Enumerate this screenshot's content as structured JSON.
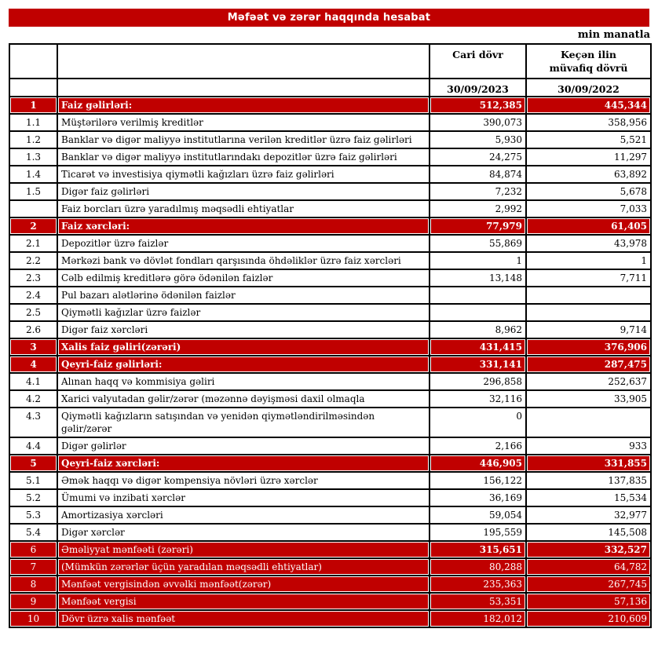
{
  "title": "Məfəət və zərər haqqında hesabat",
  "unit_note": "min manatla",
  "colors": {
    "accent_red": "#C00000",
    "border_black": "#000000"
  },
  "table": {
    "header": {
      "current_period_label": "Cari dövr",
      "previous_period_label_line1": "Keçən ilin",
      "previous_period_label_line2": "müvafiq dövrü",
      "current_period_date": "30/09/2023",
      "previous_period_date": "30/09/2022"
    },
    "rows": [
      {
        "no": "1",
        "label": "Faiz gəlirləri:",
        "current": "512,385",
        "previous": "445,344",
        "style": "section"
      },
      {
        "no": "1.1",
        "label": "Müştərilərə verilmiş kreditlər",
        "current": "390,073",
        "previous": "358,956",
        "style": "normal"
      },
      {
        "no": "1.2",
        "label": "Banklar və digər maliyyə institutlarına verilən kreditlər üzrə faiz gəlirləri",
        "current": "5,930",
        "previous": "5,521",
        "style": "normal"
      },
      {
        "no": "1.3",
        "label": "Banklar və digər maliyyə institutlarındakı depozitlər üzrə faiz gəlirləri",
        "current": "24,275",
        "previous": "11,297",
        "style": "normal"
      },
      {
        "no": "1.4",
        "label": "Ticarət və investisiya qiymətli kağızları üzrə faiz gəlirləri",
        "current": "84,874",
        "previous": "63,892",
        "style": "normal"
      },
      {
        "no": "1.5",
        "label": "Digər faiz gəlirləri",
        "current": "7,232",
        "previous": "5,678",
        "style": "normal"
      },
      {
        "no": "",
        "label": "Faiz borcları üzrə yaradılmış məqsədli ehtiyatlar",
        "current": "2,992",
        "previous": "7,033",
        "style": "normal"
      },
      {
        "no": "2",
        "label": "Faiz xərcləri:",
        "current": "77,979",
        "previous": "61,405",
        "style": "section"
      },
      {
        "no": "2.1",
        "label": "Depozitlər üzrə faizlər",
        "current": "55,869",
        "previous": "43,978",
        "style": "normal"
      },
      {
        "no": "2.2",
        "label": "Mərkəzi bank və dövlət fondları qarşısında öhdəliklər üzrə faiz xərcləri",
        "current": "1",
        "previous": "1",
        "style": "normal"
      },
      {
        "no": "2.3",
        "label": "Cəlb edilmiş kreditlərə görə ödənilən faizlər",
        "current": "13,148",
        "previous": "7,711",
        "style": "normal"
      },
      {
        "no": "2.4",
        "label": "Pul bazarı alətlərinə ödənilən faizlər",
        "current": "",
        "previous": "",
        "style": "normal"
      },
      {
        "no": "2.5",
        "label": "Qiymətli kağızlar üzrə faizlər",
        "current": "",
        "previous": "",
        "style": "normal"
      },
      {
        "no": "2.6",
        "label": "Digər faiz xərcləri",
        "current": "8,962",
        "previous": "9,714",
        "style": "normal"
      },
      {
        "no": "3",
        "label": "Xalis faiz gəliri(zərəri)",
        "current": "431,415",
        "previous": "376,906",
        "style": "section"
      },
      {
        "no": "4",
        "label": "Qeyri-faiz gəlirləri:",
        "current": "331,141",
        "previous": "287,475",
        "style": "section"
      },
      {
        "no": "4.1",
        "label": "Alınan haqq və kommisiya gəliri",
        "current": "296,858",
        "previous": "252,637",
        "style": "normal"
      },
      {
        "no": "4.2",
        "label": "Xarici valyutadan gəlir/zərər (məzənnə dəyişməsi daxil olmaqla",
        "current": "32,116",
        "previous": "33,905",
        "style": "normal"
      },
      {
        "no": "4.3",
        "label": "Qiymətli kağızların satışından və yenidən qiymətləndirilməsindən gəlir/zərər",
        "current": "0",
        "previous": "",
        "style": "normal"
      },
      {
        "no": "4.4",
        "label": "Digər gəlirlər",
        "current": "2,166",
        "previous": "933",
        "style": "normal"
      },
      {
        "no": "5",
        "label": "Qeyri-faiz xərcləri:",
        "current": "446,905",
        "previous": "331,855",
        "style": "section"
      },
      {
        "no": "5.1",
        "label": "Əmək haqqı və digər kompensiya növləri üzrə xərclər",
        "current": "156,122",
        "previous": "137,835",
        "style": "normal"
      },
      {
        "no": "5.2",
        "label": "Ümumi və inzibati xərclər",
        "current": "36,169",
        "previous": "15,534",
        "style": "normal"
      },
      {
        "no": "5.3",
        "label": "Amortizasiya xərcləri",
        "current": "59,054",
        "previous": "32,977",
        "style": "normal"
      },
      {
        "no": "5.4",
        "label": "Digər xərclər",
        "current": "195,559",
        "previous": "145,508",
        "style": "normal"
      },
      {
        "no": "6",
        "label": "Əməliyyat mənfəəti (zərəri)",
        "current": "315,651",
        "previous": "332,527",
        "style": "total-boldvals"
      },
      {
        "no": "7",
        "label": "(Mümkün zərərlər üçün yaradılan məqsədli ehtiyatlar)",
        "current": "80,288",
        "previous": "64,782",
        "style": "total"
      },
      {
        "no": "8",
        "label": "Mənfəət vergisindən əvvəlki mənfəət(zərər)",
        "current": "235,363",
        "previous": "267,745",
        "style": "total"
      },
      {
        "no": "9",
        "label": "Mənfəət vergisi",
        "current": "53,351",
        "previous": "57,136",
        "style": "total"
      },
      {
        "no": "10",
        "label": "Dövr üzrə xalis mənfəət",
        "current": "182,012",
        "previous": "210,609",
        "style": "total"
      }
    ]
  }
}
